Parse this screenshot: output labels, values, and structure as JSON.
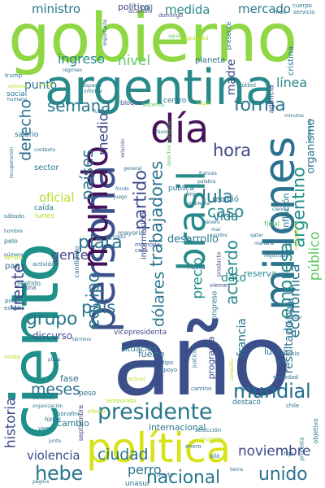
{
  "palette": {
    "indigo": "#3b4f8a",
    "purple": "#46125a",
    "blue": "#3a6ea5",
    "teal": "#1f8f8a",
    "green": "#5ec962",
    "lime": "#b5de2b",
    "yellow": "#d8e219"
  },
  "words": [
    {
      "text": "año"
    },
    {
      "text": "gobierno"
    },
    {
      "text": "ciento"
    },
    {
      "text": "argentina"
    },
    {
      "text": "política"
    },
    {
      "text": "persona"
    },
    {
      "text": "millones"
    },
    {
      "text": "día"
    },
    {
      "text": "mundo"
    },
    {
      "text": "brasil"
    },
    {
      "text": "presidente"
    },
    {
      "text": "mundial"
    },
    {
      "text": "trabajadores"
    },
    {
      "text": "partido"
    },
    {
      "text": "empresa"
    },
    {
      "text": "argentino"
    },
    {
      "text": "económica"
    },
    {
      "text": "público"
    },
    {
      "text": "nacional"
    },
    {
      "text": "unido"
    },
    {
      "text": "noviembre"
    },
    {
      "text": "plata"
    },
    {
      "text": "lula"
    },
    {
      "text": "hora"
    },
    {
      "text": "caso"
    },
    {
      "text": "semana"
    },
    {
      "text": "forma"
    },
    {
      "text": "derecho"
    },
    {
      "text": "frente"
    },
    {
      "text": "grupo"
    },
    {
      "text": "equipo"
    },
    {
      "text": "país"
    },
    {
      "text": "países"
    },
    {
      "text": "dólares"
    },
    {
      "text": "precio"
    },
    {
      "text": "acuerdo"
    },
    {
      "text": "ciudad"
    },
    {
      "text": "meses"
    },
    {
      "text": "historia"
    },
    {
      "text": "hebe"
    },
    {
      "text": "violencia"
    },
    {
      "text": "resultado"
    },
    {
      "text": "nivel"
    },
    {
      "text": "ingreso"
    },
    {
      "text": "medida"
    },
    {
      "text": "mercado"
    },
    {
      "text": "ministro"
    },
    {
      "text": "línea"
    },
    {
      "text": "medio"
    },
    {
      "text": "vida"
    },
    {
      "text": "gente"
    },
    {
      "text": "oficial"
    },
    {
      "text": "punto"
    },
    {
      "text": "organismo"
    },
    {
      "text": "desarrollo"
    },
    {
      "text": "dato"
    },
    {
      "text": "francia"
    },
    {
      "text": "madre"
    },
    {
      "text": "perro"
    },
    {
      "text": "fuerte"
    },
    {
      "text": "discurso"
    },
    {
      "text": "lucha"
    },
    {
      "text": "fase"
    },
    {
      "text": "cambio"
    },
    {
      "text": "programa"
    },
    {
      "text": "reserva"
    },
    {
      "text": "diálogo"
    },
    {
      "text": "inflación"
    },
    {
      "text": "información"
    },
    {
      "text": "situación"
    },
    {
      "text": "vicepresidenta"
    },
    {
      "text": "internacional"
    },
    {
      "text": "político"
    },
    {
      "text": "mil"
    },
    {
      "text": "planeta"
    },
    {
      "text": "cristina"
    },
    {
      "text": "presente"
    },
    {
      "text": "agencia"
    },
    {
      "text": "sector"
    },
    {
      "text": "salario"
    },
    {
      "text": "social"
    },
    {
      "text": "centro"
    },
    {
      "text": "bloque"
    },
    {
      "text": "sistema"
    },
    {
      "text": "publica"
    },
    {
      "text": "caída"
    },
    {
      "text": "lunes"
    },
    {
      "text": "recibió"
    },
    {
      "text": "final"
    },
    {
      "text": "rusia"
    },
    {
      "text": "candidato"
    },
    {
      "text": "mayoría"
    },
    {
      "text": "memoria"
    },
    {
      "text": "casa"
    },
    {
      "text": "producto"
    },
    {
      "text": "viernes"
    },
    {
      "text": "congreso"
    },
    {
      "text": "sentido"
    },
    {
      "text": "zona"
    },
    {
      "text": "peso"
    },
    {
      "text": "destacó"
    },
    {
      "text": "marte"
    },
    {
      "text": "enero"
    },
    {
      "text": "mujeres"
    },
    {
      "text": "selección"
    },
    {
      "text": "unasur"
    },
    {
      "text": "septiembre"
    },
    {
      "text": "bonafini"
    },
    {
      "text": "efecto"
    },
    {
      "text": "justicia"
    },
    {
      "text": "tipo"
    },
    {
      "text": "actual"
    },
    {
      "text": "apoyo"
    },
    {
      "text": "temporada"
    },
    {
      "text": "pueblo"
    },
    {
      "text": "acto"
    },
    {
      "text": "sociedad"
    },
    {
      "text": "objetivo"
    },
    {
      "text": "protesta"
    },
    {
      "text": "chile"
    },
    {
      "text": "hijo"
    },
    {
      "text": "camino"
    },
    {
      "text": "fútbol"
    },
    {
      "text": "mes"
    },
    {
      "text": "cuerpo"
    },
    {
      "text": "servicio"
    },
    {
      "text": "domingo"
    },
    {
      "text": "diciembre"
    },
    {
      "text": "seguridad"
    },
    {
      "text": "agua"
    },
    {
      "text": "trump"
    },
    {
      "text": "mujer"
    },
    {
      "text": "sábado"
    },
    {
      "text": "hombre"
    },
    {
      "text": "familia"
    },
    {
      "text": "paz"
    },
    {
      "text": "número"
    },
    {
      "text": "actividad"
    },
    {
      "text": "pelo"
    },
    {
      "text": "estudio"
    },
    {
      "text": "poder"
    },
    {
      "text": "ronda"
    },
    {
      "text": "científico"
    },
    {
      "text": "viene"
    },
    {
      "text": "fútbol"
    },
    {
      "text": "página"
    },
    {
      "text": "organización"
    },
    {
      "text": "régimen"
    },
    {
      "text": "informe"
    },
    {
      "text": "espacio"
    },
    {
      "text": "humano"
    },
    {
      "text": "reforma"
    },
    {
      "text": "recuperación"
    },
    {
      "text": "contexto"
    },
    {
      "text": "fuerza"
    },
    {
      "text": "minutos"
    },
    {
      "text": "soberanía"
    },
    {
      "text": "ciencia"
    },
    {
      "text": "favor"
    },
    {
      "text": "derechos humanos"
    },
    {
      "text": "palabra"
    },
    {
      "text": "francés"
    },
    {
      "text": "fondo"
    },
    {
      "text": "juego"
    },
    {
      "text": "relación"
    },
    {
      "text": "problema"
    },
    {
      "text": "fmi"
    },
    {
      "text": "género"
    },
    {
      "text": "mar"
    },
    {
      "text": "unidos"
    },
    {
      "text": "trabajadora"
    },
    {
      "text": "registrado"
    },
    {
      "text": "resto"
    },
    {
      "text": "general"
    },
    {
      "text": "qatar"
    },
    {
      "text": "mañana"
    },
    {
      "text": "costo"
    },
    {
      "text": "término"
    },
    {
      "text": "importante"
    },
    {
      "text": "campaña"
    },
    {
      "text": "plaza"
    },
    {
      "text": "allá"
    },
    {
      "text": "tierra"
    },
    {
      "text": "seguir"
    },
    {
      "text": "junto"
    }
  ]
}
